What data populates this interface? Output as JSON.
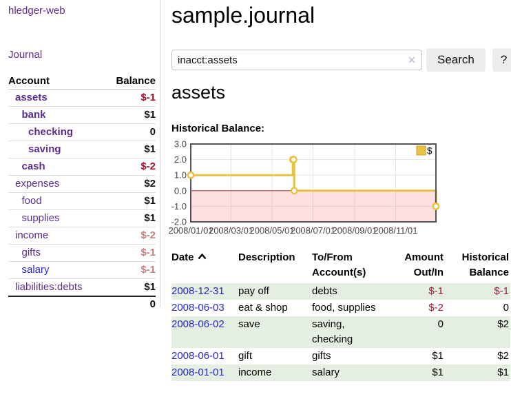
{
  "sidebar": {
    "brand": "hledger-web",
    "journal_link": "Journal",
    "accounts": {
      "col_account": "Account",
      "col_balance": "Balance",
      "rows": [
        {
          "name": "assets",
          "indent": 0,
          "bold": true,
          "balance": "$-1",
          "balance_class": "neg-strong"
        },
        {
          "name": "bank",
          "indent": 1,
          "bold": true,
          "balance": "$1",
          "balance_class": ""
        },
        {
          "name": "checking",
          "indent": 2,
          "bold": true,
          "balance": "0",
          "balance_class": ""
        },
        {
          "name": "saving",
          "indent": 2,
          "bold": true,
          "balance": "$1",
          "balance_class": ""
        },
        {
          "name": "cash",
          "indent": 1,
          "bold": true,
          "balance": "$-2",
          "balance_class": "neg-strong"
        },
        {
          "name": "expenses",
          "indent": 0,
          "bold": false,
          "balance": "$2",
          "balance_class": ""
        },
        {
          "name": "food",
          "indent": 1,
          "bold": false,
          "balance": "$1",
          "balance_class": ""
        },
        {
          "name": "supplies",
          "indent": 1,
          "bold": false,
          "balance": "$1",
          "balance_class": ""
        },
        {
          "name": "income",
          "indent": 0,
          "bold": false,
          "balance": "$-2",
          "balance_class": "neg-muted"
        },
        {
          "name": "gifts",
          "indent": 1,
          "bold": false,
          "balance": "$-1",
          "balance_class": "neg-muted"
        },
        {
          "name": "salary",
          "indent": 1,
          "bold": false,
          "unvisited": true,
          "balance": "$-1",
          "balance_class": "neg-muted"
        },
        {
          "name": "liabilities:debts",
          "indent": 0,
          "bold": false,
          "balance": "$1",
          "balance_class": ""
        }
      ],
      "total": "0"
    }
  },
  "header": {
    "title": "sample.journal"
  },
  "search": {
    "value": "inacct:assets",
    "clear_icon": "✕",
    "button": "Search",
    "help_button": "?"
  },
  "account_page": {
    "heading": "assets",
    "chart_label": "Historical Balance:"
  },
  "chart_data": {
    "type": "line",
    "step": true,
    "title": "Historical Balance:",
    "series": [
      {
        "name": "$",
        "color": "#e8c240",
        "points": [
          [
            "2008-01-01",
            1
          ],
          [
            "2008-06-01",
            2
          ],
          [
            "2008-06-02",
            2
          ],
          [
            "2008-06-03",
            0
          ],
          [
            "2008-12-31",
            -1
          ]
        ]
      }
    ],
    "x_range": [
      "2008-01-01",
      "2008-12-31"
    ],
    "x_ticks": [
      "2008/01/01",
      "2008/03/01",
      "2008/05/01",
      "2008/07/01",
      "2008/09/01",
      "2008/11/01"
    ],
    "y_ticks": [
      3,
      2,
      1,
      0,
      -1,
      -2
    ],
    "ylim": [
      -2,
      3
    ],
    "grid": true,
    "legend_position": "top-right",
    "legend_label": "$",
    "negative_fill": "rgba(255,85,85,0.18)",
    "zero_line_color": "#a23535",
    "axis_color": "#545454"
  },
  "register": {
    "headers": [
      {
        "line1": "Date",
        "line2": null,
        "align": "left",
        "sort": "asc",
        "sort_icon": "caret-up-icon"
      },
      {
        "line1": "Description",
        "line2": null,
        "align": "left"
      },
      {
        "line1": "To/From",
        "line2": "Account(s)",
        "align": "left"
      },
      {
        "line1": "Amount",
        "line2": "Out/In",
        "align": "right"
      },
      {
        "line1": "Historical",
        "line2": "Balance",
        "align": "right"
      }
    ],
    "rows": [
      {
        "date": "2008-12-31",
        "description": "pay off",
        "accounts": "debts",
        "amount": "$-1",
        "amount_negative": true,
        "balance": "$-1",
        "balance_negative": true
      },
      {
        "date": "2008-06-03",
        "description": "eat & shop",
        "accounts": "food, supplies",
        "amount": "$-2",
        "amount_negative": true,
        "balance": "0",
        "balance_negative": false
      },
      {
        "date": "2008-06-02",
        "description": "save",
        "accounts": "saving, checking",
        "amount": "0",
        "amount_negative": false,
        "balance": "$2",
        "balance_negative": false
      },
      {
        "date": "2008-06-01",
        "description": "gift",
        "accounts": "gifts",
        "amount": "$1",
        "amount_negative": false,
        "balance": "$2",
        "balance_negative": false
      },
      {
        "date": "2008-01-01",
        "description": "income",
        "accounts": "salary",
        "amount": "$1",
        "amount_negative": false,
        "balance": "$1",
        "balance_negative": false
      }
    ]
  }
}
